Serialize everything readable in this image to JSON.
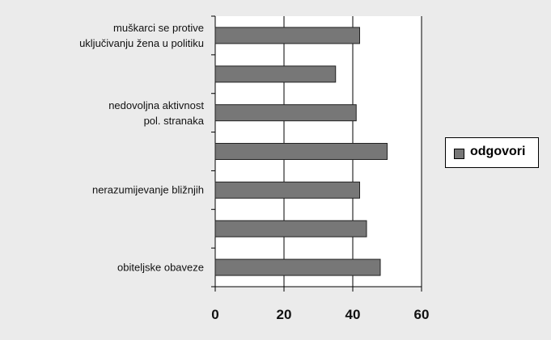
{
  "chart_data": {
    "type": "barh",
    "categories": [
      "muškarci se protive\nuključivanju žena u politiku",
      null,
      "nedovoljna aktivnost\npol. stranaka",
      null,
      "nerazumijevanje bližnjih",
      null,
      "obiteljske obaveze"
    ],
    "series": [
      {
        "name": "odgovori",
        "color": "#777777",
        "values": [
          42,
          35,
          41,
          50,
          42,
          44,
          48
        ]
      }
    ],
    "xlim": [
      0,
      60
    ],
    "xticks": [
      0,
      20,
      40,
      60
    ],
    "grid": true,
    "legend": "right"
  }
}
